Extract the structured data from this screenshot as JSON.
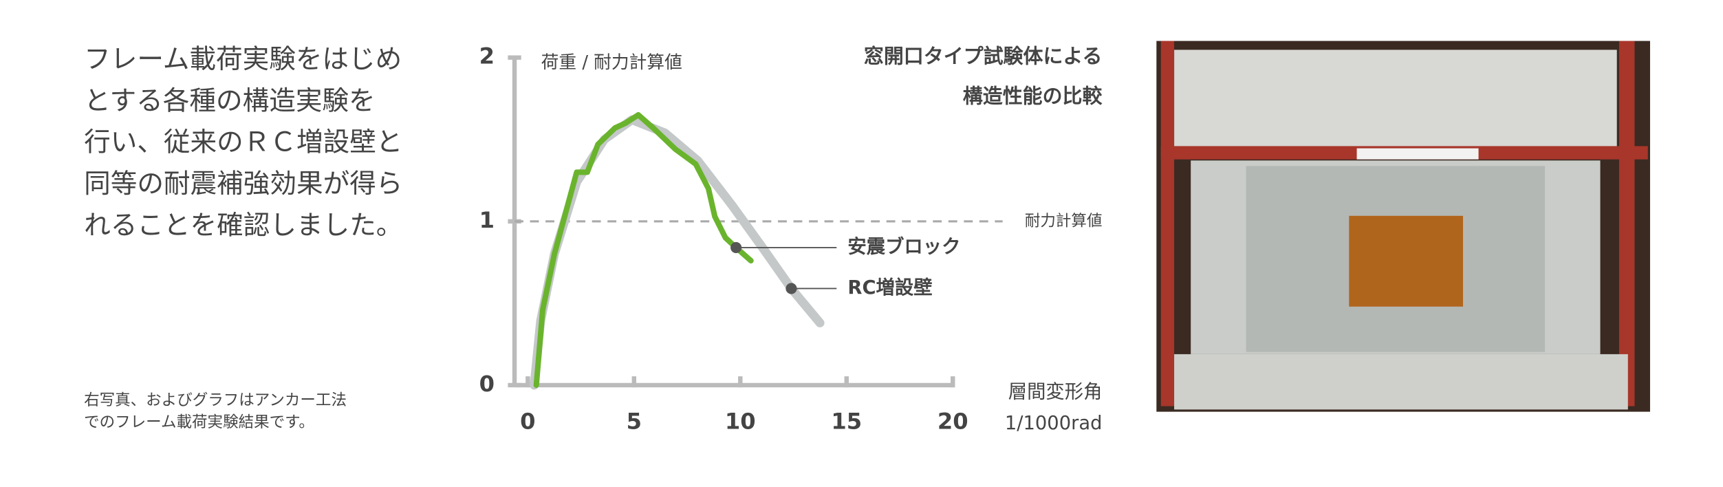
{
  "text": [
    "フレーム載荷実験をはじめ",
    "とする各種の構造実験を",
    "行い、従来のＲＣ増設壁と",
    "同等の耐震補強効果が得ら",
    "れることを確認しました。"
  ],
  "note": [
    "右写真、およびグラフはアンカー工法",
    "でのフレーム載荷実験結果です。"
  ],
  "chart_data": {
    "type": "line",
    "title": [
      "窓開口タイプ試験体による",
      "構造性能の比較"
    ],
    "y_label": "荷重 / 耐力計算値",
    "x_label": [
      "層間変形角",
      "1/1000rad"
    ],
    "xlim": [
      0,
      20
    ],
    "xticks": [
      0,
      5,
      10,
      15,
      20
    ],
    "ylim": [
      0,
      2
    ],
    "yticks": [
      0,
      1,
      2
    ],
    "reference": {
      "value": 1,
      "label": "耐力計算値"
    },
    "series": [
      {
        "name": "RC増設壁",
        "color": "#c4c8c8",
        "x": [
          0.3,
          0.6,
          1.25,
          2.3,
          3.6,
          4.9,
          6.45,
          8.0,
          9.6,
          11.1,
          12.4,
          13.75
        ],
        "values": [
          0,
          0.39,
          0.8,
          1.24,
          1.5,
          1.62,
          1.54,
          1.37,
          1.1,
          0.83,
          0.59,
          0.38
        ],
        "marker": {
          "x": 12.4,
          "value": 0.59
        }
      },
      {
        "name": "安震ブロック",
        "color": "#6ab42d",
        "x": [
          0.4,
          0.7,
          1.25,
          2.3,
          2.8,
          3.3,
          4.1,
          4.6,
          5.2,
          5.9,
          6.95,
          7.9,
          8.5,
          8.8,
          9.3,
          9.8,
          10.5
        ],
        "values": [
          0,
          0.46,
          0.8,
          1.3,
          1.3,
          1.47,
          1.57,
          1.6,
          1.65,
          1.57,
          1.44,
          1.35,
          1.2,
          1.03,
          0.9,
          0.84,
          0.76
        ],
        "marker": {
          "x": 9.8,
          "value": 0.84
        }
      }
    ]
  }
}
